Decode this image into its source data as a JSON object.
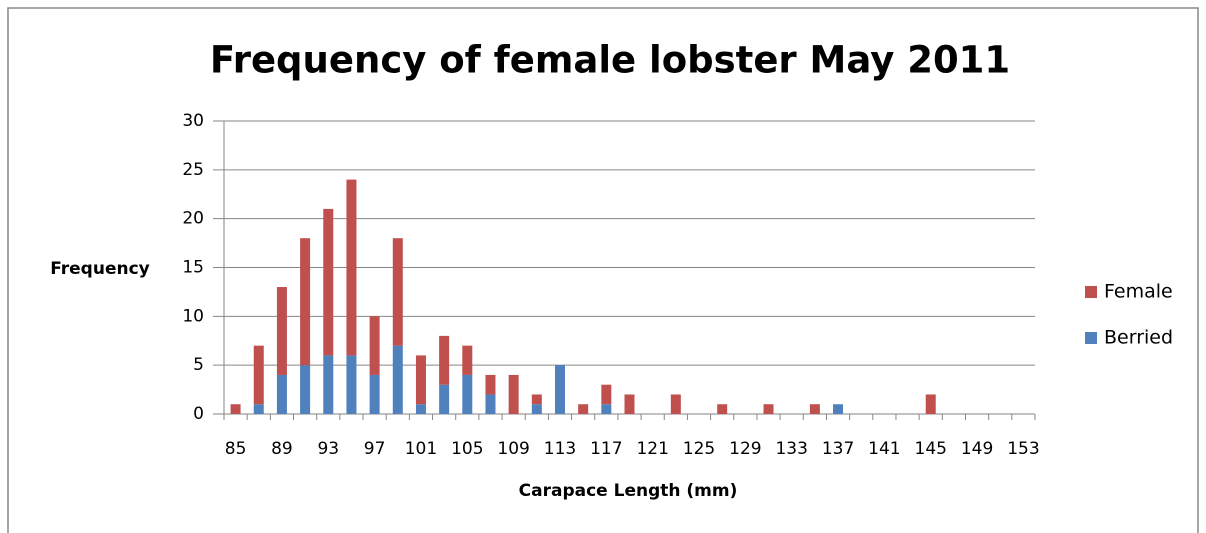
{
  "chart_data": {
    "type": "stacked_bar",
    "title": "Frequency of female lobster May 2011",
    "x_label": "Carapace Length (mm)",
    "y_label": "Frequency",
    "categories": [
      85,
      null,
      89,
      null,
      93,
      null,
      97,
      null,
      101,
      null,
      105,
      null,
      109,
      null,
      113,
      null,
      117,
      null,
      121,
      null,
      125,
      null,
      129,
      null,
      133,
      null,
      137,
      null,
      141,
      null,
      145,
      null,
      149,
      null,
      153
    ],
    "series": [
      {
        "name": "Berried",
        "color": "#4f81bd",
        "values": [
          0,
          1,
          4,
          5,
          6,
          6,
          4,
          7,
          1,
          3,
          4,
          2,
          0,
          1,
          5,
          0,
          1,
          0,
          0,
          0,
          0,
          0,
          0,
          0,
          0,
          0,
          1,
          0,
          0,
          0,
          0,
          0,
          0,
          0,
          0
        ]
      },
      {
        "name": "Female",
        "color": "#c0504d",
        "values": [
          1,
          6,
          9,
          13,
          15,
          18,
          6,
          11,
          5,
          5,
          3,
          2,
          4,
          1,
          0,
          1,
          2,
          2,
          0,
          2,
          0,
          1,
          0,
          1,
          0,
          1,
          0,
          0,
          0,
          0,
          2,
          0,
          0,
          0,
          0
        ]
      }
    ],
    "ylim": [
      0,
      30
    ],
    "yticks": [
      0,
      5,
      10,
      15,
      20,
      25,
      30
    ],
    "grid": true,
    "legend": "right"
  }
}
